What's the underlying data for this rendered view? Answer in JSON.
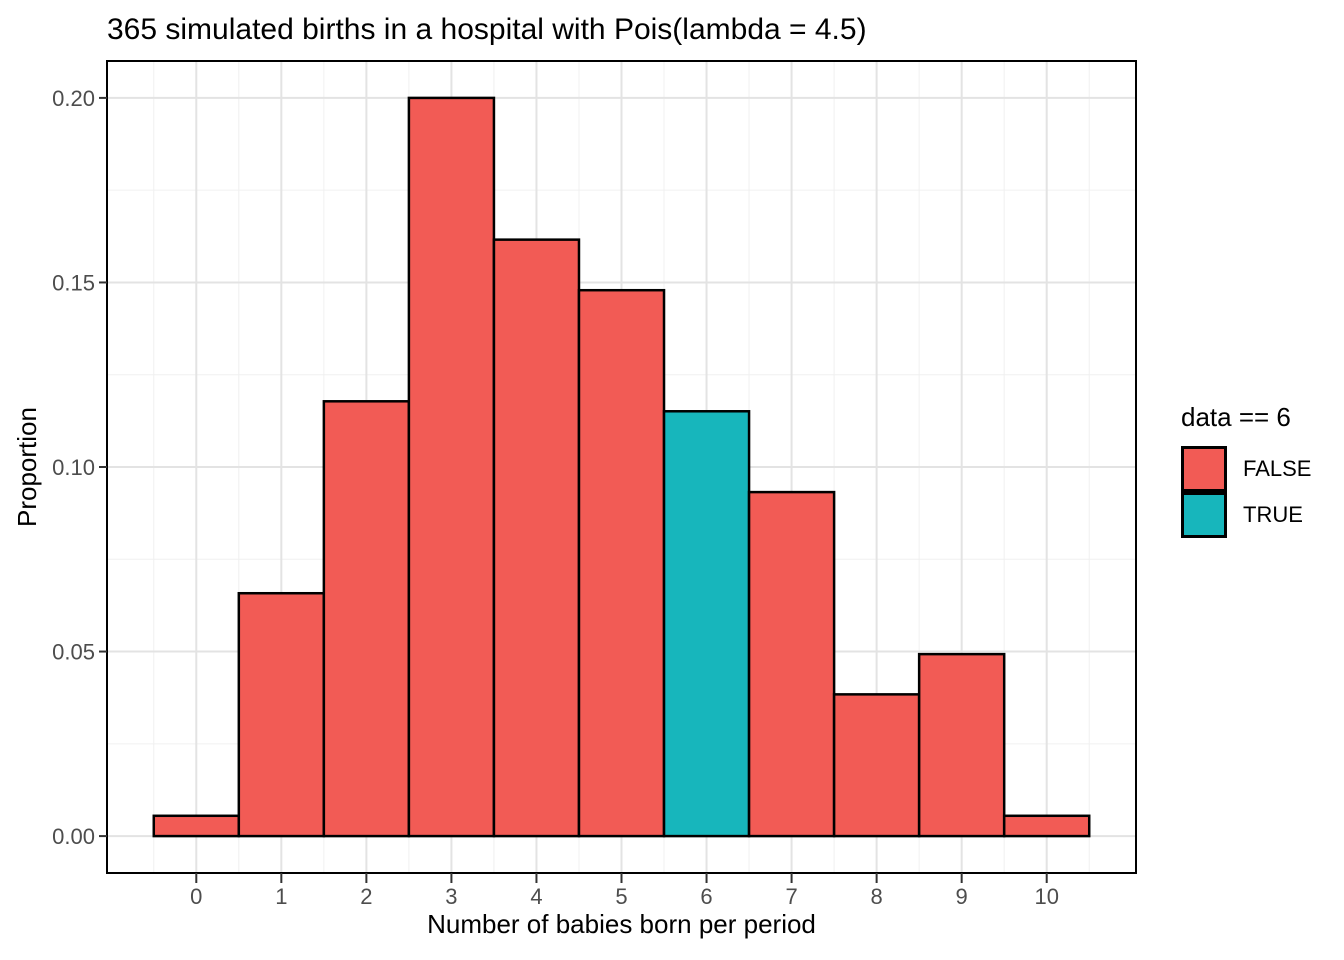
{
  "chart_data": {
    "type": "bar",
    "title": "365 simulated births in a hospital with Pois(lambda = 4.5)",
    "xlabel": "Number of babies born per period",
    "ylabel": "Proportion",
    "categories": [
      "0",
      "1",
      "2",
      "3",
      "4",
      "5",
      "6",
      "7",
      "8",
      "9",
      "10"
    ],
    "values": [
      0.0055,
      0.0658,
      0.1178,
      0.2,
      0.1616,
      0.1479,
      0.1151,
      0.0932,
      0.0384,
      0.0493,
      0.0055
    ],
    "highlight_category": "6",
    "highlight_rule": "data == 6",
    "bar_width": 1,
    "x_ticks": [
      0,
      1,
      2,
      3,
      4,
      5,
      6,
      7,
      8,
      9,
      10
    ],
    "x_tick_labels": [
      "0",
      "1",
      "2",
      "3",
      "4",
      "5",
      "6",
      "7",
      "8",
      "9",
      "10"
    ],
    "y_ticks": [
      0,
      0.05,
      0.1,
      0.15,
      0.2
    ],
    "y_tick_labels": [
      "0.00",
      "0.05",
      "0.10",
      "0.15",
      "0.20"
    ],
    "xlim": [
      -1.05,
      11.05
    ],
    "ylim": [
      -0.01,
      0.21
    ],
    "grid": "on",
    "legend_position": "right",
    "colors": {
      "false_fill": "#F25B55",
      "true_fill": "#17B6BC",
      "bar_stroke": "#000000",
      "panel_border": "#000000",
      "grid_major": "#E3E3E3",
      "grid_minor": "#F0F0F0",
      "tick_mark": "#333333",
      "tick_label": "#4D4D4D",
      "text": "#000000"
    }
  },
  "legend": {
    "title": "data == 6",
    "entries": [
      {
        "label": "FALSE",
        "color": "#F25B55"
      },
      {
        "label": "TRUE",
        "color": "#17B6BC"
      }
    ]
  }
}
